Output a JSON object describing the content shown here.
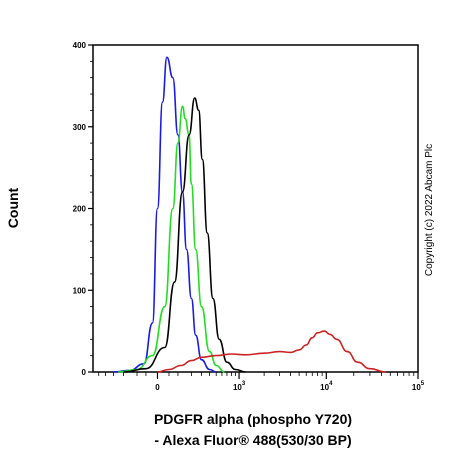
{
  "chart_data": {
    "type": "line",
    "title": "",
    "xlabel_line1": "PDGFR alpha (phospho Y720)",
    "xlabel_line2": "- Alexa Fluor® 488(530/30 BP)",
    "ylabel": "Count",
    "copyright": "Copyright (c) 2022 Abcam Plc",
    "ylim": [
      0,
      400
    ],
    "y_ticks": [
      0,
      100,
      200,
      300,
      400
    ],
    "x_scale": "biexponential",
    "x_tick_labels": [
      {
        "base": "0",
        "exp": "",
        "pos": 0
      },
      {
        "base": "10",
        "exp": "3",
        "pos": 1000
      },
      {
        "base": "10",
        "exp": "4",
        "pos": 10000
      },
      {
        "base": "10",
        "exp": "5",
        "pos": 100000
      }
    ],
    "grid": false,
    "legend": "none",
    "series": [
      {
        "color": "#1a1ae6",
        "points": [
          [
            -300,
            0
          ],
          [
            -150,
            2
          ],
          [
            -60,
            10
          ],
          [
            -20,
            60
          ],
          [
            0,
            200
          ],
          [
            20,
            330
          ],
          [
            40,
            385
          ],
          [
            70,
            360
          ],
          [
            100,
            290
          ],
          [
            130,
            220
          ],
          [
            160,
            150
          ],
          [
            200,
            90
          ],
          [
            240,
            45
          ],
          [
            300,
            15
          ],
          [
            400,
            3
          ],
          [
            500,
            0
          ]
        ]
      },
      {
        "color": "#22dd22",
        "points": [
          [
            -250,
            0
          ],
          [
            -100,
            3
          ],
          [
            -20,
            20
          ],
          [
            30,
            80
          ],
          [
            70,
            200
          ],
          [
            100,
            280
          ],
          [
            130,
            325
          ],
          [
            150,
            310
          ],
          [
            180,
            290
          ],
          [
            200,
            230
          ],
          [
            240,
            150
          ],
          [
            300,
            80
          ],
          [
            400,
            25
          ],
          [
            500,
            8
          ],
          [
            650,
            0
          ]
        ]
      },
      {
        "color": "#000000",
        "points": [
          [
            -200,
            0
          ],
          [
            -50,
            4
          ],
          [
            30,
            30
          ],
          [
            80,
            110
          ],
          [
            130,
            220
          ],
          [
            180,
            290
          ],
          [
            230,
            335
          ],
          [
            270,
            320
          ],
          [
            310,
            260
          ],
          [
            370,
            170
          ],
          [
            450,
            90
          ],
          [
            550,
            40
          ],
          [
            700,
            12
          ],
          [
            900,
            3
          ],
          [
            1200,
            0
          ]
        ]
      },
      {
        "color": "#cc2222",
        "points": [
          [
            0,
            0
          ],
          [
            50,
            3
          ],
          [
            120,
            8
          ],
          [
            200,
            14
          ],
          [
            300,
            18
          ],
          [
            500,
            20
          ],
          [
            800,
            22
          ],
          [
            1200,
            21
          ],
          [
            2000,
            23
          ],
          [
            3000,
            25
          ],
          [
            4000,
            24
          ],
          [
            5000,
            27
          ],
          [
            6000,
            33
          ],
          [
            7000,
            42
          ],
          [
            8000,
            48
          ],
          [
            9500,
            50
          ],
          [
            11000,
            46
          ],
          [
            13000,
            40
          ],
          [
            17000,
            25
          ],
          [
            22000,
            12
          ],
          [
            30000,
            4
          ],
          [
            45000,
            0
          ]
        ]
      }
    ]
  }
}
